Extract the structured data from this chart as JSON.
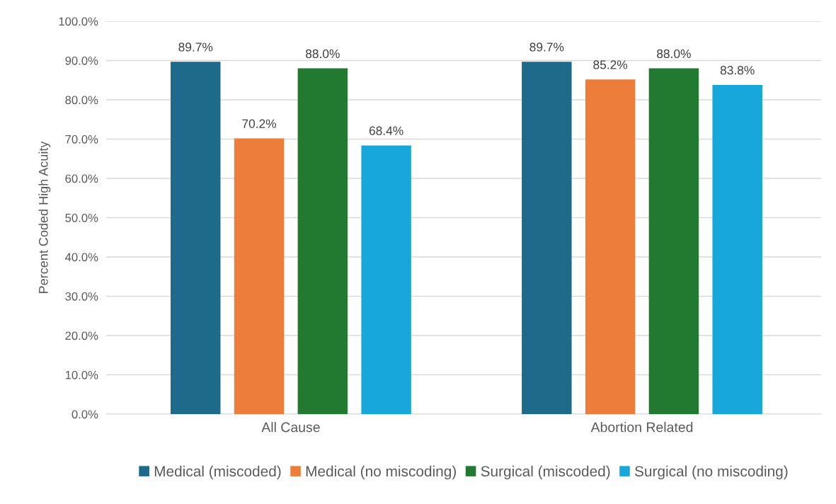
{
  "chart_data": {
    "type": "bar",
    "ylabel": "Percent Coded High Acuity",
    "categories": [
      "All Cause",
      "Abortion Related"
    ],
    "series": [
      {
        "name": "Medical (miscoded)",
        "color": "#1d6a8b",
        "values": [
          89.7,
          89.7
        ],
        "value_labels": [
          "89.7%",
          "89.7%"
        ]
      },
      {
        "name": "Medical (no miscoding)",
        "color": "#ed7d3b",
        "values": [
          70.2,
          85.2
        ],
        "value_labels": [
          "70.2%",
          "85.2%"
        ]
      },
      {
        "name": "Surgical (miscoded)",
        "color": "#217a30",
        "values": [
          88.0,
          88.0
        ],
        "value_labels": [
          "88.0%",
          "88.0%"
        ]
      },
      {
        "name": "Surgical (no miscoding)",
        "color": "#17a7db",
        "values": [
          68.4,
          83.8
        ],
        "value_labels": [
          "68.4%",
          "83.8%"
        ]
      }
    ],
    "ylim": [
      0,
      100
    ],
    "yticks": [
      {
        "value": 0,
        "label": "0.0%"
      },
      {
        "value": 10,
        "label": "10.0%"
      },
      {
        "value": 20,
        "label": "20.0%"
      },
      {
        "value": 30,
        "label": "30.0%"
      },
      {
        "value": 40,
        "label": "40.0%"
      },
      {
        "value": 50,
        "label": "50.0%"
      },
      {
        "value": 60,
        "label": "60.0%"
      },
      {
        "value": 70,
        "label": "70.0%"
      },
      {
        "value": 80,
        "label": "80.0%"
      },
      {
        "value": 90,
        "label": "90.0%"
      },
      {
        "value": 100,
        "label": "100.0%"
      }
    ],
    "grid": "y",
    "legend": "bottom"
  }
}
